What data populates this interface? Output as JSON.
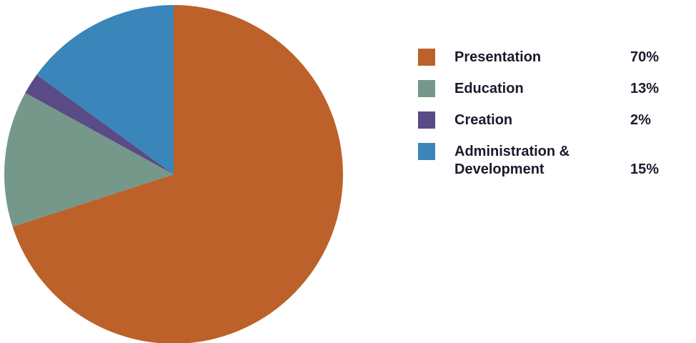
{
  "chart_data": {
    "type": "pie",
    "title": "",
    "legend_position": "right",
    "slices": [
      {
        "label": "Presentation",
        "value": 70,
        "value_label": "70%",
        "color": "#BC6129"
      },
      {
        "label": "Education",
        "value": 13,
        "value_label": "13%",
        "color": "#75988B"
      },
      {
        "label": "Creation",
        "value": 2,
        "value_label": "2%",
        "color": "#5A4A85"
      },
      {
        "label": "Administration & Development",
        "value": 15,
        "value_label": "15%",
        "color": "#3A85B9"
      }
    ]
  }
}
